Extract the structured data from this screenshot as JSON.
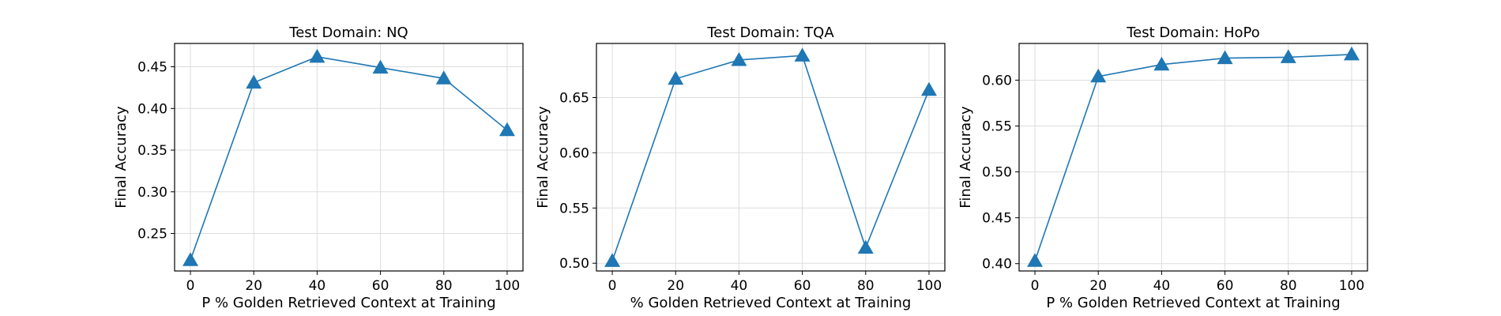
{
  "figure": {
    "marker": "triangle",
    "line_color": "#1f77b4",
    "background": "#ffffff",
    "grid": true
  },
  "chart_data": [
    {
      "type": "line",
      "title": "Test Domain: NQ",
      "xlabel": "P % Golden Retrieved Context at Training",
      "ylabel": "Final Accuracy",
      "x": [
        0,
        20,
        40,
        60,
        80,
        100
      ],
      "series": [
        {
          "values": [
            0.218,
            0.431,
            0.462,
            0.449,
            0.436,
            0.374
          ]
        }
      ],
      "xlim": [
        -5,
        105
      ],
      "ylim": [
        0.205,
        0.478
      ],
      "xticks": [
        0,
        20,
        40,
        60,
        80,
        100
      ],
      "xtick_labels": [
        "0",
        "20",
        "40",
        "60",
        "80",
        "100"
      ],
      "yticks": [
        0.25,
        0.3,
        0.35,
        0.4,
        0.45
      ],
      "ytick_labels": [
        "0.25",
        "0.30",
        "0.35",
        "0.40",
        "0.45"
      ]
    },
    {
      "type": "line",
      "title": "Test Domain: TQA",
      "xlabel": "% Golden Retrieved Context at Training",
      "ylabel": "Final Accuracy",
      "x": [
        0,
        20,
        40,
        60,
        80,
        100
      ],
      "series": [
        {
          "values": [
            0.502,
            0.667,
            0.684,
            0.688,
            0.514,
            0.657
          ]
        }
      ],
      "xlim": [
        -5,
        105
      ],
      "ylim": [
        0.493,
        0.699
      ],
      "xticks": [
        0,
        20,
        40,
        60,
        80,
        100
      ],
      "xtick_labels": [
        "0",
        "20",
        "40",
        "60",
        "80",
        "100"
      ],
      "yticks": [
        0.5,
        0.55,
        0.6,
        0.65
      ],
      "ytick_labels": [
        "0.50",
        "0.55",
        "0.60",
        "0.65"
      ]
    },
    {
      "type": "line",
      "title": "Test Domain: HoPo",
      "xlabel": "P % Golden Retrieved Context at Training",
      "ylabel": "Final Accuracy",
      "x": [
        0,
        20,
        40,
        60,
        80,
        100
      ],
      "series": [
        {
          "values": [
            0.403,
            0.604,
            0.617,
            0.624,
            0.625,
            0.628
          ]
        }
      ],
      "xlim": [
        -5,
        105
      ],
      "ylim": [
        0.392,
        0.64
      ],
      "xticks": [
        0,
        20,
        40,
        60,
        80,
        100
      ],
      "xtick_labels": [
        "0",
        "20",
        "40",
        "60",
        "80",
        "100"
      ],
      "yticks": [
        0.4,
        0.45,
        0.5,
        0.55,
        0.6
      ],
      "ytick_labels": [
        "0.40",
        "0.45",
        "0.50",
        "0.55",
        "0.60"
      ]
    }
  ]
}
